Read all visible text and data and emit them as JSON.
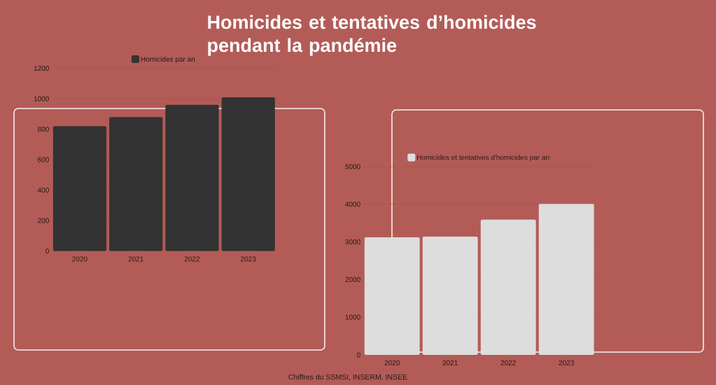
{
  "chart_data": [
    {
      "type": "bar",
      "title": "Homicides et tentatives d’homicides pendant la pandémie",
      "categories": [
        "2020",
        "2021",
        "2022",
        "2023"
      ],
      "series": [
        {
          "name": "Homicides par an",
          "color": "#333333",
          "values": [
            820,
            880,
            960,
            1010
          ]
        }
      ],
      "ylim": [
        0,
        1200
      ],
      "yticks": [
        0,
        200,
        400,
        600,
        800,
        1000,
        1200
      ],
      "grid": "y",
      "legend": "top"
    },
    {
      "type": "bar",
      "categories": [
        "2020",
        "2021",
        "2022",
        "2023"
      ],
      "series": [
        {
          "name": "Homicides et tentatives d'homicides par an",
          "color": "#dddddd",
          "values": [
            3120,
            3140,
            3590,
            4010
          ]
        }
      ],
      "ylim": [
        0,
        5000
      ],
      "yticks": [
        0,
        1000,
        2000,
        3000,
        4000,
        5000
      ],
      "grid": "y",
      "legend": "top",
      "annotations": [
        "Chiffres du SSMSI, INSERM, INSEE"
      ]
    }
  ]
}
